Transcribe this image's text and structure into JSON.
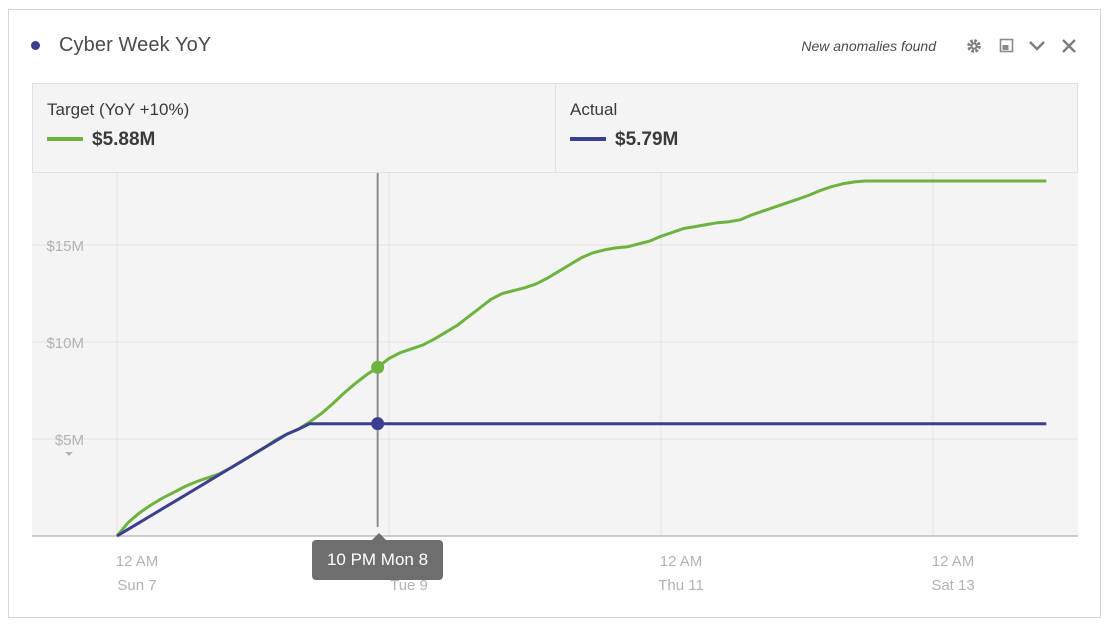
{
  "header": {
    "title": "Cyber Week YoY",
    "anomaly_text": "New anomalies found",
    "dot_color": "#3b3f8f",
    "controls": [
      "gear-icon",
      "expand-icon",
      "chevron-down-icon",
      "close-icon"
    ]
  },
  "summary": {
    "metrics": [
      {
        "label": "Target (YoY +10%)",
        "value": "$5.88M",
        "color": "#6db33f"
      },
      {
        "label": "Actual",
        "value": "$5.79M",
        "color": "#3b3f8f"
      }
    ]
  },
  "tooltip": {
    "text": "10 PM Mon 8"
  },
  "chart_data": {
    "type": "line",
    "title": "",
    "xlabel": "",
    "ylabel": "",
    "ylim": [
      0,
      18.5
    ],
    "xlim": [
      0,
      164
    ],
    "y_ticks": [
      {
        "value": 5,
        "label": "$5M"
      },
      {
        "value": 10,
        "label": "$10M"
      },
      {
        "value": 15,
        "label": "$15M"
      }
    ],
    "x_ticks": [
      {
        "value": 0,
        "line1": "12 AM",
        "line2": "Sun 7"
      },
      {
        "value": 48,
        "line1": "12 AM",
        "line2": "Tue 9"
      },
      {
        "value": 96,
        "line1": "12 AM",
        "line2": "Thu 11"
      },
      {
        "value": 144,
        "line1": "12 AM",
        "line2": "Sat 13"
      }
    ],
    "grid": true,
    "cursor_x": 46,
    "series": [
      {
        "name": "Target (YoY +10%)",
        "color": "#6db33f",
        "x": [
          0,
          2,
          4,
          6,
          8,
          10,
          12,
          14,
          16,
          18,
          20,
          22,
          24,
          26,
          28,
          30,
          32,
          34,
          36,
          38,
          40,
          42,
          44,
          46,
          48,
          50,
          52,
          54,
          56,
          58,
          60,
          62,
          64,
          66,
          68,
          70,
          72,
          74,
          76,
          78,
          80,
          82,
          84,
          86,
          88,
          90,
          92,
          94,
          96,
          98,
          100,
          102,
          104,
          106,
          108,
          110,
          112,
          114,
          116,
          118,
          120,
          122,
          124,
          126,
          128,
          130,
          132,
          134,
          136,
          138,
          140,
          142,
          144,
          146,
          148,
          150,
          152,
          154,
          156,
          158,
          160,
          162,
          164
        ],
        "values": [
          0,
          0.7,
          1.2,
          1.6,
          1.95,
          2.25,
          2.55,
          2.8,
          3.0,
          3.2,
          3.5,
          3.85,
          4.2,
          4.55,
          4.95,
          5.25,
          5.5,
          5.88,
          6.3,
          6.8,
          7.35,
          7.85,
          8.3,
          8.7,
          9.15,
          9.45,
          9.65,
          9.85,
          10.15,
          10.5,
          10.85,
          11.3,
          11.75,
          12.2,
          12.5,
          12.65,
          12.8,
          13.0,
          13.3,
          13.65,
          14.0,
          14.35,
          14.6,
          14.75,
          14.85,
          14.9,
          15.05,
          15.2,
          15.45,
          15.65,
          15.85,
          15.95,
          16.05,
          16.15,
          16.2,
          16.3,
          16.55,
          16.75,
          16.95,
          17.15,
          17.35,
          17.55,
          17.8,
          18.0,
          18.15,
          18.25,
          18.35,
          18.45,
          18.55,
          18.65,
          18.75,
          18.85,
          18.95,
          19.05,
          19.15,
          19.25,
          19.35,
          19.45,
          19.55,
          19.65,
          19.75,
          19.85,
          20.0
        ]
      },
      {
        "name": "Actual",
        "color": "#3b3f8f",
        "x": [
          0,
          2,
          4,
          6,
          8,
          10,
          12,
          14,
          16,
          18,
          20,
          22,
          24,
          26,
          28,
          30,
          32,
          34,
          36,
          38,
          40,
          42,
          44,
          46,
          48,
          60,
          80,
          100,
          120,
          140,
          164
        ],
        "values": [
          0,
          0.35,
          0.7,
          1.05,
          1.4,
          1.75,
          2.1,
          2.45,
          2.8,
          3.15,
          3.5,
          3.85,
          4.2,
          4.55,
          4.9,
          5.25,
          5.5,
          5.79,
          5.79,
          5.79,
          5.79,
          5.79,
          5.79,
          5.79,
          5.79,
          5.79,
          5.79,
          5.79,
          5.79,
          5.79,
          5.79
        ]
      }
    ]
  }
}
